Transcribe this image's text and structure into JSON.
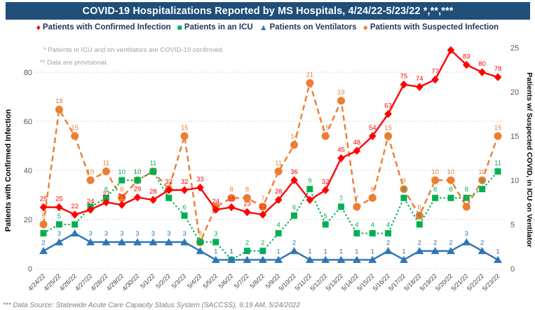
{
  "title": "COVID-19 Hospitalizations Reported by MS Hospitals, 4/24/22-5/23/22 *,**,***",
  "legend": [
    {
      "label": "Patients with Confirmed Infection",
      "marker": "diamond",
      "color": "#FF0000"
    },
    {
      "label": "Patients in an ICU",
      "marker": "square",
      "color": "#00B050"
    },
    {
      "label": "Patients on Ventilators",
      "marker": "triangle",
      "color": "#2E75B6"
    },
    {
      "label": "Patients with Suspected Infection",
      "marker": "circle",
      "color": "#ED7D31"
    }
  ],
  "notes": {
    "note1": "* Patients in ICU and on ventilators are COVID-19 confirmed.",
    "note2": "** Data are provisional."
  },
  "footer": "*** Data Source: Statewide Acute Care Capacity Status System (SACCSS), 9:19 AM, 5/24/2022",
  "chart_data": {
    "type": "line",
    "x": [
      "4/24/22",
      "4/25/22",
      "4/26/22",
      "4/27/22",
      "4/28/22",
      "4/29/22",
      "4/30/22",
      "5/1/22",
      "5/2/22",
      "5/3/22",
      "5/4/22",
      "5/5/22",
      "5/6/22",
      "5/7/22",
      "5/8/22",
      "5/9/22",
      "5/10/22",
      "5/11/22",
      "5/12/22",
      "5/13/22",
      "5/14/22",
      "5/15/22",
      "5/16/22",
      "5/17/22",
      "5/18/22",
      "5/19/22",
      "5/20/22",
      "5/21/22",
      "5/22/22",
      "5/23/22"
    ],
    "axes": {
      "left": {
        "title": "Patients with Confirmed Infection",
        "ticks": [
          0,
          20,
          40,
          60,
          80
        ],
        "range": [
          0,
          93.7
        ]
      },
      "right": {
        "title": "Patients w/ Suspected COVID, in ICU on Ventilator",
        "ticks": [
          0,
          5,
          10,
          15,
          20,
          25
        ],
        "range": [
          0,
          25
        ]
      }
    },
    "grid": {
      "horizontal": "dotted at left-axis ticks",
      "vertical": false
    },
    "legend_position": "top",
    "series": [
      {
        "name": "Patients with Suspected Infection",
        "axis": "right",
        "color": "#ED7D31",
        "marker": "circle",
        "line": "dashed",
        "values": [
          5,
          18,
          15,
          10,
          11,
          8,
          10,
          11,
          9,
          15,
          3,
          7,
          8,
          8,
          7,
          11,
          14,
          21,
          15,
          19,
          7,
          8,
          15,
          9,
          6,
          10,
          10,
          7,
          10,
          15
        ],
        "labels": [
          "5",
          "18",
          "15",
          "10",
          "11",
          "8",
          "10",
          "",
          "",
          "15",
          "3",
          "",
          "8",
          "8",
          "7",
          "11",
          "14",
          "21",
          "15",
          "19",
          "7",
          "8",
          "15",
          "9",
          "6",
          "10",
          "10",
          "7",
          "10",
          "15"
        ]
      },
      {
        "name": "Patients in an ICU",
        "axis": "right",
        "color": "#00B050",
        "marker": "square",
        "line": "dotted",
        "values": [
          4,
          5,
          5,
          7,
          8,
          10,
          10,
          11,
          8,
          6,
          3,
          3,
          1,
          2,
          2,
          4,
          6,
          9,
          5,
          7,
          4,
          4,
          4,
          8,
          5,
          8,
          8,
          8,
          9,
          11
        ],
        "labels": [
          "",
          "5",
          "",
          "",
          "8",
          "10",
          "10",
          "11",
          "",
          "6",
          "",
          "3",
          "1",
          "2",
          "2",
          "4",
          "6",
          "9",
          "5",
          "7",
          "4",
          "4",
          "4",
          "8",
          "5",
          "8",
          "8",
          "8",
          "9",
          "11"
        ]
      },
      {
        "name": "Patients on Ventilators",
        "axis": "right",
        "color": "#2E75B6",
        "marker": "triangle",
        "line": "solid",
        "values": [
          2,
          3,
          4,
          3,
          3,
          3,
          3,
          3,
          3,
          3,
          2,
          1,
          1,
          1,
          1,
          1,
          2,
          1,
          1,
          1,
          1,
          1,
          2,
          1,
          2,
          2,
          2,
          3,
          2,
          1
        ],
        "labels": [
          "2",
          "3",
          "",
          "3",
          "3",
          "3",
          "3",
          "3",
          "3",
          "3",
          "",
          "1",
          "1",
          "1",
          "1",
          "1",
          "2",
          "1",
          "1",
          "1",
          "1",
          "1",
          "2",
          "1",
          "2",
          "2",
          "2",
          "3",
          "2",
          "1"
        ]
      },
      {
        "name": "Patients with Confirmed Infection",
        "axis": "left",
        "color": "#FF0000",
        "marker": "diamond",
        "line": "solid",
        "values": [
          25,
          25,
          22,
          24,
          27,
          26,
          29,
          28,
          32,
          32,
          33,
          24,
          25,
          23,
          22,
          28,
          36,
          28,
          32,
          45,
          48,
          54,
          63,
          75,
          74,
          77,
          89,
          83,
          80,
          78
        ],
        "labels": [
          "25",
          "25",
          "22",
          "24",
          "27",
          "26",
          "29",
          "28",
          "32",
          "32",
          "33",
          "24",
          "25",
          "23",
          "22",
          "28",
          "36",
          "",
          "32",
          "45",
          "48",
          "54",
          "63",
          "75",
          "74",
          "77",
          "",
          "83",
          "80",
          "78"
        ]
      }
    ]
  }
}
